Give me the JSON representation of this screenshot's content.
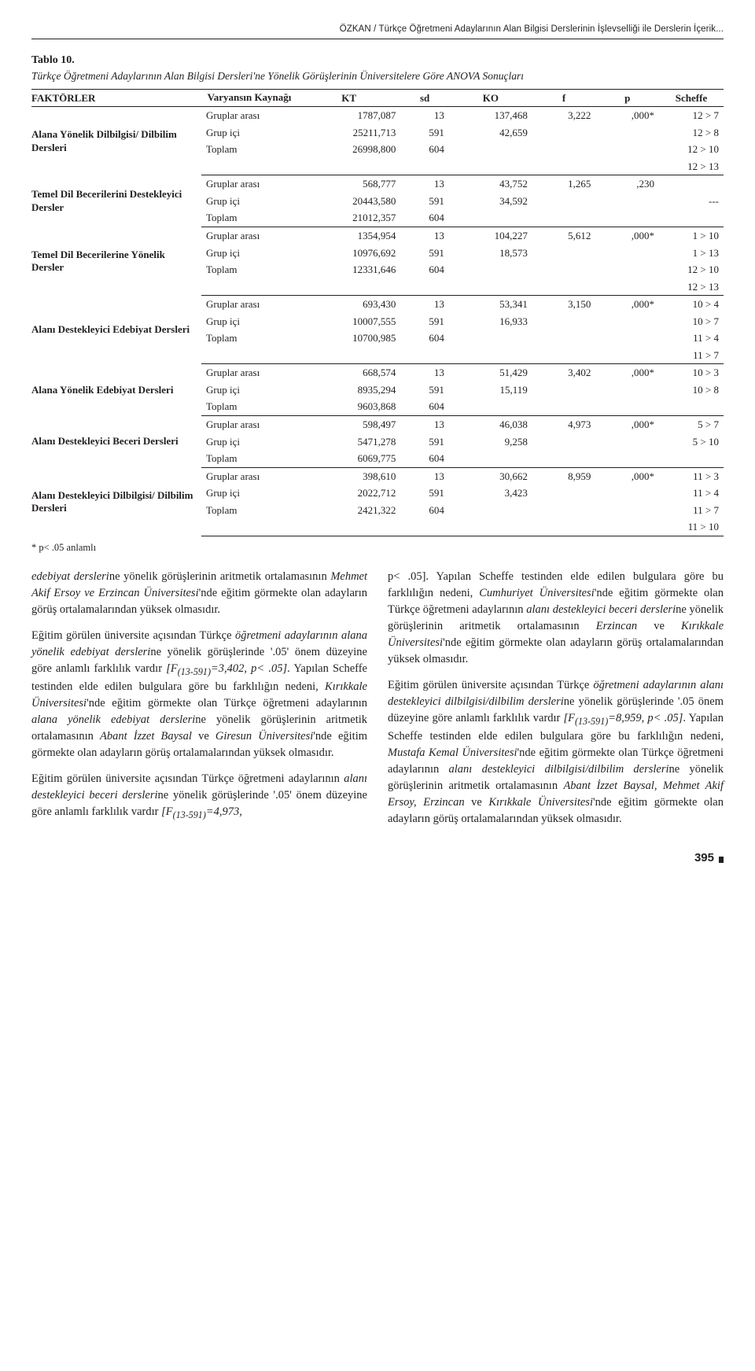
{
  "running_head": "ÖZKAN / Türkçe Öğretmeni Adaylarının Alan Bilgisi Derslerinin İşlevselliği ile Derslerin İçerik...",
  "table_label": "Tablo 10.",
  "table_caption": "Türkçe Öğretmeni Adaylarının Alan Bilgisi Dersleri'ne Yönelik Görüşlerinin Üniversitelere Göre ANOVA Sonuçları",
  "headers": {
    "factors": "FAKTÖRLER",
    "source": "Varyansın Kaynağı",
    "kt": "KT",
    "sd": "sd",
    "ko": "KO",
    "f": "f",
    "p": "p",
    "scheffe": "Scheffe"
  },
  "src_labels": {
    "between": "Gruplar arası",
    "within": "Grup içi",
    "total": "Toplam"
  },
  "blocks": [
    {
      "factor": "Alana Yönelik Dilbilgisi/ Dilbilim Dersleri",
      "between": {
        "kt": "1787,087",
        "sd": "13",
        "ko": "137,468",
        "f": "3,222",
        "p": ",000*"
      },
      "within": {
        "kt": "25211,713",
        "sd": "591",
        "ko": "42,659"
      },
      "total": {
        "kt": "26998,800",
        "sd": "604"
      },
      "scheffe": [
        "12 > 7",
        "12 > 8",
        "12 > 10",
        "12 > 13"
      ]
    },
    {
      "factor": "Temel Dil Becerilerini Destekleyici Dersler",
      "between": {
        "kt": "568,777",
        "sd": "13",
        "ko": "43,752",
        "f": "1,265",
        "p": ",230"
      },
      "within": {
        "kt": "20443,580",
        "sd": "591",
        "ko": "34,592"
      },
      "total": {
        "kt": "21012,357",
        "sd": "604"
      },
      "scheffe": [
        "",
        "---",
        ""
      ]
    },
    {
      "factor": "Temel Dil Becerilerine Yönelik Dersler",
      "between": {
        "kt": "1354,954",
        "sd": "13",
        "ko": "104,227",
        "f": "5,612",
        "p": ",000*"
      },
      "within": {
        "kt": "10976,692",
        "sd": "591",
        "ko": "18,573"
      },
      "total": {
        "kt": "12331,646",
        "sd": "604"
      },
      "scheffe": [
        "1 > 10",
        "1 > 13",
        "12 > 10",
        "12 > 13"
      ]
    },
    {
      "factor": "Alanı Destekleyici Edebiyat Dersleri",
      "between": {
        "kt": "693,430",
        "sd": "13",
        "ko": "53,341",
        "f": "3,150",
        "p": ",000*"
      },
      "within": {
        "kt": "10007,555",
        "sd": "591",
        "ko": "16,933"
      },
      "total": {
        "kt": "10700,985",
        "sd": "604"
      },
      "scheffe": [
        "10 > 4",
        "10 > 7",
        "11 > 4",
        "11 > 7"
      ]
    },
    {
      "factor": "Alana Yönelik Edebiyat Dersleri",
      "between": {
        "kt": "668,574",
        "sd": "13",
        "ko": "51,429",
        "f": "3,402",
        "p": ",000*"
      },
      "within": {
        "kt": "8935,294",
        "sd": "591",
        "ko": "15,119"
      },
      "total": {
        "kt": "9603,868",
        "sd": "604"
      },
      "scheffe": [
        "10 > 3",
        "10 > 8",
        ""
      ]
    },
    {
      "factor": "Alanı Destekleyici Beceri Dersleri",
      "between": {
        "kt": "598,497",
        "sd": "13",
        "ko": "46,038",
        "f": "4,973",
        "p": ",000*"
      },
      "within": {
        "kt": "5471,278",
        "sd": "591",
        "ko": "9,258"
      },
      "total": {
        "kt": "6069,775",
        "sd": "604"
      },
      "scheffe": [
        "5 > 7",
        "5 > 10",
        ""
      ]
    },
    {
      "factor": "Alanı Destekleyici Dilbilgisi/ Dilbilim Dersleri",
      "between": {
        "kt": "398,610",
        "sd": "13",
        "ko": "30,662",
        "f": "8,959",
        "p": ",000*"
      },
      "within": {
        "kt": "2022,712",
        "sd": "591",
        "ko": "3,423"
      },
      "total": {
        "kt": "2421,322",
        "sd": "604"
      },
      "scheffe": [
        "11 > 3",
        "11 > 4",
        "11 > 7",
        "11 > 10"
      ]
    }
  ],
  "footnote": "* p< .05 anlamlı",
  "paragraphs": [
    "<span class=\"it\">edebiyat dersleri</span>ne yönelik görüşlerinin aritmetik ortalamasının <span class=\"it\">Mehmet Akif Ersoy ve Erzincan Üniversitesi</span>'nde eğitim görmekte olan adayların görüş ortalamalarından yüksek olmasıdır.",
    "Eğitim görülen üniversite açısından Türkçe <span class=\"it\">öğretmeni adaylarının alana yönelik edebiyat dersleri</span>ne yönelik görüşlerinde '.05' önem düzeyine göre anlamlı farklılık vardır <span class=\"it\">[F<sub>(13-591)</sub>=3,402, p&lt; .05]</span>. Yapılan Scheffe testinden elde edilen bulgulara göre bu farklılığın nedeni, <span class=\"it\">Kırıkkale Üniversitesi</span>'nde eğitim görmekte olan Türkçe öğretmeni adaylarının <span class=\"it\">alana yönelik edebiyat dersleri</span>ne yönelik görüşlerinin aritmetik ortalamasının <span class=\"it\">Abant İzzet Baysal</span> ve <span class=\"it\">Giresun Üniversitesi</span>'nde eğitim görmekte olan adayların görüş ortalamalarından yüksek olmasıdır.",
    "Eğitim görülen üniversite açısından Türkçe öğretmeni adaylarının <span class=\"it\">alanı destekleyici beceri dersleri</span>ne yönelik görüşlerinde '.05' önem düzeyine göre anlamlı farklılık vardır <span class=\"it\">[F<sub>(13-591)</sub>=4,973,",
    "p&lt; .05]</span>. Yapılan Scheffe testinden elde edilen bulgulara göre bu farklılığın nedeni, <span class=\"it\">Cumhuriyet Üniversitesi</span>'nde eğitim görmekte olan Türkçe öğretmeni adaylarının <span class=\"it\">alanı destekleyici beceri dersleri</span>ne yönelik görüşlerinin aritmetik ortalamasının <span class=\"it\">Erzincan</span> ve <span class=\"it\">Kırıkkale Üniversitesi</span>'nde eğitim görmekte olan adayların görüş ortalamalarından yüksek olmasıdır.",
    "Eğitim görülen üniversite açısından Türkçe <span class=\"it\">öğretmeni adaylarının alanı destekleyici dilbilgisi/dilbilim dersleri</span>ne yönelik görüşlerinde '.05 önem düzeyine göre anlamlı farklılık vardır <span class=\"it\">[F<sub>(13-591)</sub>=8,959, p&lt; .05]</span>. Yapılan Scheffe testinden elde edilen bulgulara göre bu farklılığın nedeni, <span class=\"it\">Mustafa Kemal Üniversitesi</span>'nde eğitim görmekte olan Türkçe öğretmeni adaylarının <span class=\"it\">alanı destekleyici dilbilgisi/dilbilim dersleri</span>ne yönelik görüşlerinin aritmetik ortalamasının <span class=\"it\">Abant İzzet Baysal, Mehmet Akif Ersoy, Erzincan</span> ve <span class=\"it\">Kırıkkale Üniversitesi</span>'nde eğitim görmekte olan adayların görüş ortalamalarından yüksek olmasıdır."
  ],
  "page_number": "395"
}
